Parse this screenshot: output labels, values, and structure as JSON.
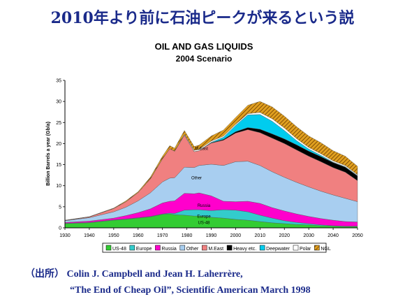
{
  "slide": {
    "title": "2010年より前に石油ピークが来るという説",
    "source_prefix": "（出所）",
    "source_authors": "Colin J. Campbell and Jean H. Laherrère,",
    "source_title": "“The End of Cheap Oil”, Scientific American March 1998"
  },
  "chart_data": {
    "type": "area",
    "stacked": true,
    "title": "OIL AND GAS LIQUIDS",
    "subtitle": "2004 Scenario",
    "xlabel": "",
    "ylabel": "Billion Barrels a year (Gb/a)",
    "xlim": [
      1930,
      2050
    ],
    "ylim": [
      0,
      35
    ],
    "xticks": [
      1930,
      1940,
      1950,
      1960,
      1970,
      1980,
      1990,
      2000,
      2010,
      2020,
      2030,
      2040,
      2050
    ],
    "yticks": [
      0,
      5,
      10,
      15,
      20,
      25,
      30,
      35
    ],
    "x": [
      1930,
      1940,
      1950,
      1955,
      1960,
      1965,
      1970,
      1973,
      1975,
      1979,
      1983,
      1985,
      1990,
      1995,
      2000,
      2005,
      2010,
      2015,
      2020,
      2025,
      2030,
      2035,
      2040,
      2045,
      2050
    ],
    "grid": false,
    "legend_position": "bottom",
    "series": [
      {
        "name": "US-48",
        "color": "#33cc33",
        "values": [
          1.0,
          1.2,
          1.8,
          2.0,
          2.3,
          2.6,
          3.2,
          3.3,
          3.1,
          3.0,
          2.8,
          2.8,
          2.5,
          2.3,
          2.0,
          1.8,
          1.5,
          1.2,
          1.0,
          0.8,
          0.7,
          0.5,
          0.4,
          0.3,
          0.3
        ]
      },
      {
        "name": "Europe",
        "color": "#33cccc",
        "values": [
          0.1,
          0.1,
          0.1,
          0.1,
          0.1,
          0.1,
          0.1,
          0.2,
          0.3,
          1.2,
          1.5,
          1.5,
          1.6,
          2.0,
          2.2,
          2.0,
          1.5,
          1.1,
          0.7,
          0.5,
          0.3,
          0.2,
          0.1,
          0.1,
          0.1
        ]
      },
      {
        "name": "Russia",
        "color": "#ff00cc",
        "values": [
          0.2,
          0.3,
          0.4,
          0.8,
          1.2,
          1.8,
          2.6,
          2.8,
          3.0,
          4.0,
          3.8,
          4.0,
          3.5,
          2.0,
          2.0,
          2.5,
          2.8,
          2.5,
          2.3,
          2.0,
          1.7,
          1.5,
          1.3,
          1.1,
          1.0
        ]
      },
      {
        "name": "Other",
        "color": "#a8cef0",
        "values": [
          0.4,
          0.8,
          1.5,
          2.0,
          2.8,
          3.8,
          5.0,
          5.5,
          5.5,
          6.2,
          6.2,
          6.5,
          7.5,
          8.5,
          9.5,
          9.5,
          9.0,
          8.5,
          8.0,
          7.5,
          7.0,
          6.5,
          6.0,
          5.5,
          4.8
        ]
      },
      {
        "name": "M.East",
        "color": "#f08080",
        "values": [
          0.05,
          0.2,
          0.8,
          1.3,
          2.0,
          3.3,
          5.5,
          7.0,
          6.3,
          7.6,
          3.8,
          3.5,
          5.0,
          6.0,
          6.8,
          7.5,
          7.8,
          8.0,
          8.0,
          7.7,
          7.3,
          7.0,
          6.5,
          6.2,
          5.0
        ]
      },
      {
        "name": "Heavy etc.",
        "color": "#000000",
        "values": [
          0,
          0,
          0,
          0,
          0,
          0,
          0,
          0,
          0,
          0,
          0,
          0,
          0.1,
          0.2,
          0.3,
          0.5,
          0.8,
          1.0,
          1.1,
          1.2,
          1.2,
          1.2,
          1.2,
          1.2,
          1.1
        ]
      },
      {
        "name": "Deepwater",
        "color": "#00ccee",
        "values": [
          0,
          0,
          0,
          0,
          0,
          0,
          0,
          0,
          0,
          0,
          0,
          0,
          0.1,
          0.5,
          1.5,
          3.0,
          3.5,
          3.0,
          2.0,
          1.0,
          0.5,
          0.3,
          0.1,
          0.1,
          0.1
        ]
      },
      {
        "name": "Polar",
        "color": "#ffffff",
        "values": [
          0,
          0,
          0,
          0,
          0,
          0,
          0,
          0,
          0,
          0.2,
          0.3,
          0.3,
          0.3,
          0.3,
          0.3,
          0.3,
          0.5,
          0.6,
          0.6,
          0.5,
          0.4,
          0.4,
          0.3,
          0.3,
          0.2
        ]
      },
      {
        "name": "NGL",
        "color": "#cc8800",
        "values": [
          0.05,
          0.05,
          0.1,
          0.2,
          0.2,
          0.4,
          0.6,
          0.7,
          0.7,
          0.9,
          0.9,
          1.0,
          1.2,
          1.4,
          1.6,
          2.0,
          2.6,
          2.8,
          2.8,
          2.8,
          2.7,
          2.6,
          2.4,
          2.2,
          2.0
        ]
      }
    ],
    "annotations": [
      {
        "text": "M.East",
        "x": 1986,
        "y": 18.5
      },
      {
        "text": "Other",
        "x": 1984,
        "y": 11.5
      },
      {
        "text": "Russia",
        "x": 1987,
        "y": 5.0
      },
      {
        "text": "Europe",
        "x": 1987,
        "y": 2.4
      },
      {
        "text": "US-48",
        "x": 1987,
        "y": 0.9
      }
    ]
  }
}
